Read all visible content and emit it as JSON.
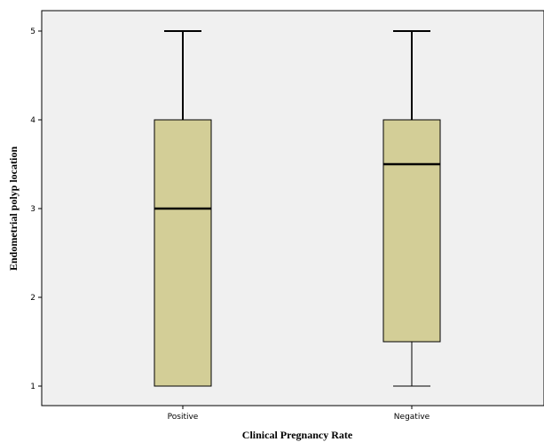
{
  "chart_data": {
    "type": "boxplot",
    "xlabel": "Clinical Pregnancy Rate",
    "ylabel": "Endometrial polyp location",
    "categories": [
      "Positive",
      "Negative"
    ],
    "yticks": [
      "1",
      "2",
      "3",
      "4",
      "5"
    ],
    "ylim": [
      0.8,
      5.23
    ],
    "grid": false,
    "legend": "none",
    "boxes": [
      {
        "category": "Positive",
        "min": 1,
        "q1": 1,
        "median": 3,
        "q3": 4,
        "max": 5
      },
      {
        "category": "Negative",
        "min": 1,
        "q1": 1.5,
        "median": 3.5,
        "q3": 4,
        "max": 5
      }
    ],
    "colors": {
      "plot_background": "#f0f0f0",
      "box_fill": "#d3ce97",
      "line": "#000000"
    }
  }
}
